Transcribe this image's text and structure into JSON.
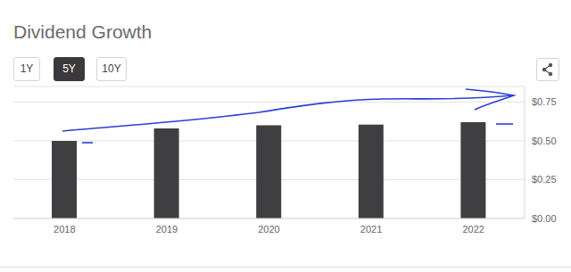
{
  "chart_data": {
    "type": "bar",
    "title": "Dividend Growth",
    "categories": [
      "2018",
      "2019",
      "2020",
      "2021",
      "2022"
    ],
    "values": [
      0.5,
      0.58,
      0.6,
      0.605,
      0.62
    ],
    "color": "#3f3f42",
    "ylim": [
      0,
      0.85
    ],
    "yticks": [
      {
        "value": 0,
        "label": "$0.00"
      },
      {
        "value": 0.25,
        "label": "$0.25"
      },
      {
        "value": 0.5,
        "label": "$0.50"
      },
      {
        "value": 0.75,
        "label": "$0.75"
      }
    ],
    "grid": true
  },
  "controls": {
    "buttons": [
      "1Y",
      "5Y",
      "10Y"
    ],
    "active": "5Y"
  }
}
